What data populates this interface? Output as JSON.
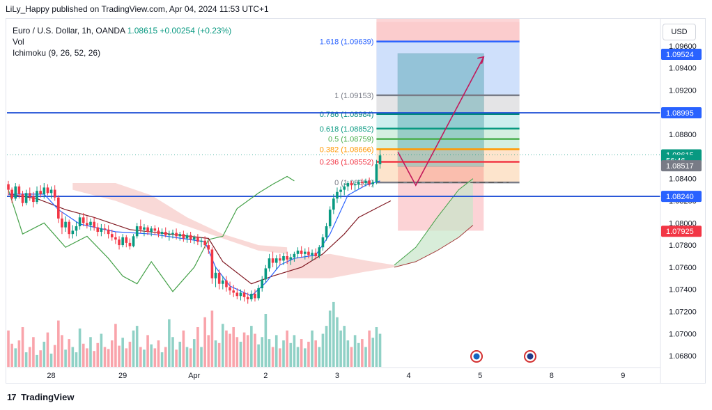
{
  "header": {
    "published_by": "LiLy_Happy published on TradingView.com, Apr 04, 2024 11:53 UTC+1"
  },
  "legend": {
    "symbol": "Euro / U.S. Dollar, 1h, OANDA",
    "price": "1.08615",
    "change": "+0.00254 (+0.23%)",
    "vol": "Vol",
    "ichimoku": "Ichimoku (9, 26, 52, 26)"
  },
  "currency_button": "USD",
  "footer": {
    "logo": "17",
    "brand": "TradingView"
  },
  "colors": {
    "up": "#089981",
    "down": "#f23645",
    "kijun": "#801922",
    "tenkan": "#2962ff",
    "chikou": "#43a047",
    "cloud_bear": "#f7c9c6",
    "cloud_bull": "#c8e6c9",
    "hline": "#1e4fd6",
    "fib_bg": "#fbc8ca"
  },
  "chart_data": {
    "type": "candlestick",
    "symbol": "EURUSD",
    "timeframe": "1h",
    "ylim": [
      1.067,
      1.0975
    ],
    "y_ticks": [
      "1.06800",
      "1.07000",
      "1.07200",
      "1.07400",
      "1.07600",
      "1.07800",
      "1.08000",
      "1.08200",
      "1.08400",
      "1.08600",
      "1.08800",
      "1.09000",
      "1.09200",
      "1.09400",
      "1.09600"
    ],
    "y_tick_values": [
      1.068,
      1.07,
      1.072,
      1.074,
      1.076,
      1.078,
      1.08,
      1.082,
      1.084,
      1.086,
      1.088,
      1.09,
      1.092,
      1.094,
      1.096
    ],
    "x_labels": [
      {
        "label": "28",
        "bar": 12
      },
      {
        "label": "29",
        "bar": 32
      },
      {
        "label": "Apr",
        "bar": 52
      },
      {
        "label": "2",
        "bar": 72
      },
      {
        "label": "3",
        "bar": 92
      },
      {
        "label": "4",
        "bar": 112
      },
      {
        "label": "5",
        "bar": 132
      },
      {
        "label": "8",
        "bar": 152
      },
      {
        "label": "9",
        "bar": 172
      }
    ],
    "candles": [
      [
        1.0835,
        1.0838,
        1.0825,
        1.083
      ],
      [
        1.083,
        1.0832,
        1.0818,
        1.0822
      ],
      [
        1.0822,
        1.0836,
        1.082,
        1.0833
      ],
      [
        1.0833,
        1.0835,
        1.0822,
        1.0826
      ],
      [
        1.0826,
        1.0829,
        1.0815,
        1.0818
      ],
      [
        1.0818,
        1.083,
        1.0816,
        1.0827
      ],
      [
        1.0827,
        1.0832,
        1.082,
        1.0824
      ],
      [
        1.0824,
        1.0828,
        1.0814,
        1.0819
      ],
      [
        1.0819,
        1.0833,
        1.0817,
        1.0829
      ],
      [
        1.0829,
        1.0834,
        1.0823,
        1.0826
      ],
      [
        1.0826,
        1.0836,
        1.0822,
        1.0832
      ],
      [
        1.0832,
        1.0835,
        1.0825,
        1.0827
      ],
      [
        1.0827,
        1.0833,
        1.0822,
        1.083
      ],
      [
        1.083,
        1.0834,
        1.082,
        1.0823
      ],
      [
        1.0823,
        1.0825,
        1.08,
        1.0804
      ],
      [
        1.0804,
        1.081,
        1.079,
        1.0796
      ],
      [
        1.0796,
        1.0806,
        1.0792,
        1.0801
      ],
      [
        1.0801,
        1.0803,
        1.0786,
        1.079
      ],
      [
        1.079,
        1.0798,
        1.0786,
        1.0793
      ],
      [
        1.0793,
        1.0801,
        1.0788,
        1.0797
      ],
      [
        1.0797,
        1.0808,
        1.0794,
        1.0805
      ],
      [
        1.0805,
        1.0809,
        1.0797,
        1.08
      ],
      [
        1.08,
        1.0806,
        1.0795,
        1.0798
      ],
      [
        1.0798,
        1.0804,
        1.0793,
        1.0801
      ],
      [
        1.0801,
        1.0805,
        1.0793,
        1.0796
      ],
      [
        1.0796,
        1.08,
        1.0788,
        1.0792
      ],
      [
        1.0792,
        1.0799,
        1.0788,
        1.0795
      ],
      [
        1.0795,
        1.0799,
        1.079,
        1.0794
      ],
      [
        1.0794,
        1.0798,
        1.0786,
        1.079
      ],
      [
        1.079,
        1.0794,
        1.0784,
        1.0787
      ],
      [
        1.0787,
        1.0792,
        1.0781,
        1.0785
      ],
      [
        1.0785,
        1.0788,
        1.0776,
        1.078
      ],
      [
        1.078,
        1.079,
        1.0778,
        1.0787
      ],
      [
        1.0787,
        1.0789,
        1.0778,
        1.0782
      ],
      [
        1.0782,
        1.0786,
        1.0776,
        1.0779
      ],
      [
        1.0779,
        1.079,
        1.0778,
        1.0788
      ],
      [
        1.0788,
        1.08,
        1.0786,
        1.0797
      ],
      [
        1.0797,
        1.0803,
        1.0791,
        1.0794
      ],
      [
        1.0794,
        1.0799,
        1.0788,
        1.0796
      ],
      [
        1.0796,
        1.0798,
        1.0789,
        1.0792
      ],
      [
        1.0792,
        1.0797,
        1.0788,
        1.0795
      ],
      [
        1.0795,
        1.0798,
        1.0789,
        1.0793
      ],
      [
        1.0793,
        1.0796,
        1.0787,
        1.079
      ],
      [
        1.079,
        1.0795,
        1.0786,
        1.0792
      ],
      [
        1.0792,
        1.0796,
        1.0787,
        1.0789
      ],
      [
        1.0789,
        1.0793,
        1.0784,
        1.079
      ],
      [
        1.079,
        1.0794,
        1.0786,
        1.0791
      ],
      [
        1.0791,
        1.0795,
        1.0785,
        1.0788
      ],
      [
        1.0788,
        1.0792,
        1.0784,
        1.079
      ],
      [
        1.079,
        1.0793,
        1.0783,
        1.0786
      ],
      [
        1.0786,
        1.0791,
        1.0782,
        1.0789
      ],
      [
        1.0789,
        1.0792,
        1.0782,
        1.0785
      ],
      [
        1.0785,
        1.0789,
        1.0781,
        1.0787
      ],
      [
        1.0787,
        1.079,
        1.078,
        1.0783
      ],
      [
        1.0783,
        1.0787,
        1.0778,
        1.0784
      ],
      [
        1.0784,
        1.0788,
        1.0777,
        1.078
      ],
      [
        1.078,
        1.0784,
        1.0772,
        1.0776
      ],
      [
        1.0776,
        1.0778,
        1.0745,
        1.075
      ],
      [
        1.075,
        1.076,
        1.0742,
        1.0755
      ],
      [
        1.0755,
        1.0758,
        1.074,
        1.0745
      ],
      [
        1.0745,
        1.0752,
        1.074,
        1.0748
      ],
      [
        1.0748,
        1.0752,
        1.0738,
        1.0742
      ],
      [
        1.0742,
        1.0747,
        1.0735,
        1.0739
      ],
      [
        1.0739,
        1.0744,
        1.0733,
        1.0737
      ],
      [
        1.0737,
        1.0741,
        1.0731,
        1.0734
      ],
      [
        1.0734,
        1.074,
        1.073,
        1.0737
      ],
      [
        1.0737,
        1.074,
        1.0729,
        1.0733
      ],
      [
        1.0733,
        1.0737,
        1.0727,
        1.0731
      ],
      [
        1.0731,
        1.0739,
        1.0729,
        1.0736
      ],
      [
        1.0736,
        1.074,
        1.0729,
        1.0732
      ],
      [
        1.0732,
        1.0744,
        1.073,
        1.0741
      ],
      [
        1.0741,
        1.0752,
        1.0738,
        1.0749
      ],
      [
        1.0749,
        1.0762,
        1.0746,
        1.0759
      ],
      [
        1.0759,
        1.0772,
        1.0756,
        1.0768
      ],
      [
        1.0768,
        1.0774,
        1.076,
        1.0764
      ],
      [
        1.0764,
        1.0771,
        1.0758,
        1.0768
      ],
      [
        1.0768,
        1.0772,
        1.0762,
        1.0766
      ],
      [
        1.0766,
        1.0773,
        1.0762,
        1.077
      ],
      [
        1.077,
        1.0774,
        1.0763,
        1.0767
      ],
      [
        1.0767,
        1.0772,
        1.0762,
        1.0769
      ],
      [
        1.0769,
        1.0774,
        1.0765,
        1.0772
      ],
      [
        1.0772,
        1.0778,
        1.0768,
        1.0775
      ],
      [
        1.0775,
        1.0779,
        1.0769,
        1.0772
      ],
      [
        1.0772,
        1.0777,
        1.0767,
        1.0774
      ],
      [
        1.0774,
        1.0778,
        1.0768,
        1.0771
      ],
      [
        1.0771,
        1.0776,
        1.0766,
        1.0773
      ],
      [
        1.0773,
        1.0777,
        1.0767,
        1.077
      ],
      [
        1.077,
        1.078,
        1.0768,
        1.0778
      ],
      [
        1.0778,
        1.079,
        1.0775,
        1.0787
      ],
      [
        1.0787,
        1.08,
        1.0784,
        1.0797
      ],
      [
        1.0797,
        1.0815,
        1.0795,
        1.0812
      ],
      [
        1.0812,
        1.0826,
        1.0808,
        1.0822
      ],
      [
        1.0822,
        1.0832,
        1.0818,
        1.0828
      ],
      [
        1.0828,
        1.0833,
        1.0822,
        1.083
      ],
      [
        1.083,
        1.0836,
        1.0825,
        1.0833
      ],
      [
        1.0833,
        1.0838,
        1.0829,
        1.0836
      ],
      [
        1.0836,
        1.0838,
        1.083,
        1.0834
      ],
      [
        1.0834,
        1.0838,
        1.0829,
        1.0835
      ],
      [
        1.0835,
        1.0839,
        1.0831,
        1.0837
      ],
      [
        1.0837,
        1.084,
        1.0832,
        1.0836
      ],
      [
        1.0836,
        1.084,
        1.0833,
        1.0838
      ],
      [
        1.0838,
        1.0841,
        1.0833,
        1.0835
      ],
      [
        1.0835,
        1.0839,
        1.0832,
        1.0837
      ],
      [
        1.0837,
        1.0857,
        1.0835,
        1.0853
      ],
      [
        1.0853,
        1.0866,
        1.0849,
        1.0861
      ]
    ],
    "volume": [
      55,
      35,
      28,
      40,
      60,
      22,
      30,
      45,
      18,
      25,
      38,
      52,
      20,
      33,
      70,
      48,
      26,
      42,
      30,
      22,
      58,
      35,
      28,
      45,
      24,
      36,
      50,
      30,
      27,
      40,
      65,
      32,
      44,
      28,
      38,
      55,
      62,
      30,
      26,
      48,
      34,
      28,
      40,
      22,
      30,
      72,
      45,
      26,
      38,
      55,
      30,
      28,
      42,
      60,
      30,
      75,
      48,
      85,
      40,
      36,
      65,
      55,
      50,
      60,
      45,
      38,
      52,
      48,
      62,
      50,
      34,
      45,
      80,
      42,
      30,
      48,
      28,
      40,
      55,
      36,
      48,
      30,
      42,
      28,
      38,
      55,
      40,
      30,
      50,
      62,
      85,
      98,
      75,
      55,
      62,
      40,
      30,
      48,
      36,
      42,
      30,
      55,
      44,
      60,
      50
    ],
    "ichimoku": {
      "tenkan_points": [
        [
          0,
          1.0826
        ],
        [
          10,
          1.0826
        ],
        [
          14,
          1.0812
        ],
        [
          20,
          1.0799
        ],
        [
          30,
          1.0792
        ],
        [
          40,
          1.079
        ],
        [
          55,
          1.0783
        ],
        [
          58,
          1.076
        ],
        [
          62,
          1.0743
        ],
        [
          68,
          1.0734
        ],
        [
          72,
          1.0746
        ],
        [
          76,
          1.0762
        ],
        [
          80,
          1.0768
        ],
        [
          86,
          1.0771
        ],
        [
          90,
          1.079
        ],
        [
          95,
          1.0825
        ],
        [
          100,
          1.0834
        ],
        [
          104,
          1.0838
        ]
      ],
      "kijun_points": [
        [
          0,
          1.0826
        ],
        [
          8,
          1.0822
        ],
        [
          16,
          1.0812
        ],
        [
          24,
          1.0805
        ],
        [
          34,
          1.0794
        ],
        [
          48,
          1.0789
        ],
        [
          56,
          1.0786
        ],
        [
          60,
          1.0765
        ],
        [
          68,
          1.0745
        ],
        [
          74,
          1.0752
        ],
        [
          82,
          1.076
        ],
        [
          88,
          1.0772
        ],
        [
          94,
          1.079
        ],
        [
          98,
          1.0805
        ],
        [
          104,
          1.0815
        ],
        [
          107,
          1.082
        ]
      ],
      "chikou_points": [
        [
          0,
          1.083
        ],
        [
          4,
          1.079
        ],
        [
          10,
          1.08
        ],
        [
          16,
          1.0778
        ],
        [
          22,
          1.0788
        ],
        [
          28,
          1.0768
        ],
        [
          32,
          1.0752
        ],
        [
          36,
          1.0745
        ],
        [
          40,
          1.0765
        ],
        [
          46,
          1.0738
        ],
        [
          52,
          1.076
        ],
        [
          56,
          1.0785
        ],
        [
          60,
          1.0788
        ],
        [
          64,
          1.0813
        ],
        [
          70,
          1.0827
        ],
        [
          74,
          1.0835
        ],
        [
          78,
          1.0842
        ],
        [
          80,
          1.0838
        ]
      ],
      "cloud_bear_upper": [
        [
          18,
          1.0836
        ],
        [
          30,
          1.0836
        ],
        [
          40,
          1.0825
        ],
        [
          50,
          1.0805
        ],
        [
          60,
          1.079
        ],
        [
          70,
          1.078
        ],
        [
          78,
          1.0778
        ]
      ],
      "cloud_bear_lower": [
        [
          18,
          1.083
        ],
        [
          30,
          1.082
        ],
        [
          40,
          1.0808
        ],
        [
          50,
          1.0797
        ],
        [
          60,
          1.0786
        ],
        [
          70,
          1.0775
        ],
        [
          78,
          1.0772
        ]
      ],
      "cloud_bear2_upper": [
        [
          78,
          1.0768
        ],
        [
          90,
          1.0772
        ],
        [
          100,
          1.0766
        ],
        [
          108,
          1.0762
        ]
      ],
      "cloud_bear2_lower": [
        [
          78,
          1.075
        ],
        [
          90,
          1.075
        ],
        [
          100,
          1.0756
        ],
        [
          108,
          1.076
        ]
      ],
      "cloud_bull_upper": [
        [
          108,
          1.0762
        ],
        [
          114,
          1.0778
        ],
        [
          120,
          1.0805
        ],
        [
          126,
          1.083
        ],
        [
          130,
          1.084
        ]
      ],
      "cloud_bull_lower": [
        [
          108,
          1.076
        ],
        [
          114,
          1.0765
        ],
        [
          120,
          1.0775
        ],
        [
          126,
          1.0787
        ],
        [
          130,
          1.0798
        ]
      ]
    },
    "horizontal_lines": [
      {
        "price": 1.08995,
        "label": "1.08995"
      },
      {
        "price": 1.0824,
        "label": "1.08240"
      }
    ],
    "fibonacci": {
      "bar_start": 103,
      "bar_end": 143,
      "levels": [
        {
          "ratio": "1.618",
          "price": 1.09639,
          "label": "1.618 (1.09639)",
          "color": "#2962ff"
        },
        {
          "ratio": "1",
          "price": 1.09153,
          "label": "1 (1.09153)",
          "color": "#787b86"
        },
        {
          "ratio": "0.786",
          "price": 1.08984,
          "label": "0.786 (1.08984)",
          "color": "#00897b"
        },
        {
          "ratio": "0.618",
          "price": 1.08852,
          "label": "0.618 (1.08852)",
          "color": "#089981"
        },
        {
          "ratio": "0.5",
          "price": 1.08759,
          "label": "0.5 (1.08759)",
          "color": "#4caf50"
        },
        {
          "ratio": "0.382",
          "price": 1.08666,
          "label": "0.382 (1.08666)",
          "color": "#ff9800"
        },
        {
          "ratio": "0.236",
          "price": 1.08552,
          "label": "0.236 (1.08552)",
          "color": "#f23645"
        },
        {
          "ratio": "0",
          "price": 1.08366,
          "label": "0 (1.08366)",
          "color": "#787b86"
        }
      ]
    },
    "long_position": {
      "bar_start": 109,
      "bar_end": 133,
      "entry": 1.0851,
      "target": 1.0953,
      "stop": 1.0793
    },
    "projection_path": [
      [
        109,
        1.0864
      ],
      [
        114,
        1.0834
      ],
      [
        133,
        1.095
      ]
    ],
    "price_labels": [
      {
        "text": "1.09524",
        "price": 1.09524,
        "color": "#2962ff"
      },
      {
        "text": "1.08995",
        "price": 1.08995,
        "color": "#2962ff"
      },
      {
        "text": "1.08615",
        "price": 1.08615,
        "color": "#089981"
      },
      {
        "text": "56:46",
        "price": 1.08565,
        "color": "#089981"
      },
      {
        "text": "1.08517",
        "price": 1.08517,
        "color": "#787b86"
      },
      {
        "text": "1.08240",
        "price": 1.0824,
        "color": "#2962ff"
      },
      {
        "text": "1.07925",
        "price": 1.07925,
        "color": "#f23645"
      }
    ],
    "event_flags": [
      {
        "bar": 131,
        "label": "US"
      },
      {
        "bar": 146,
        "label": "EU"
      }
    ]
  }
}
